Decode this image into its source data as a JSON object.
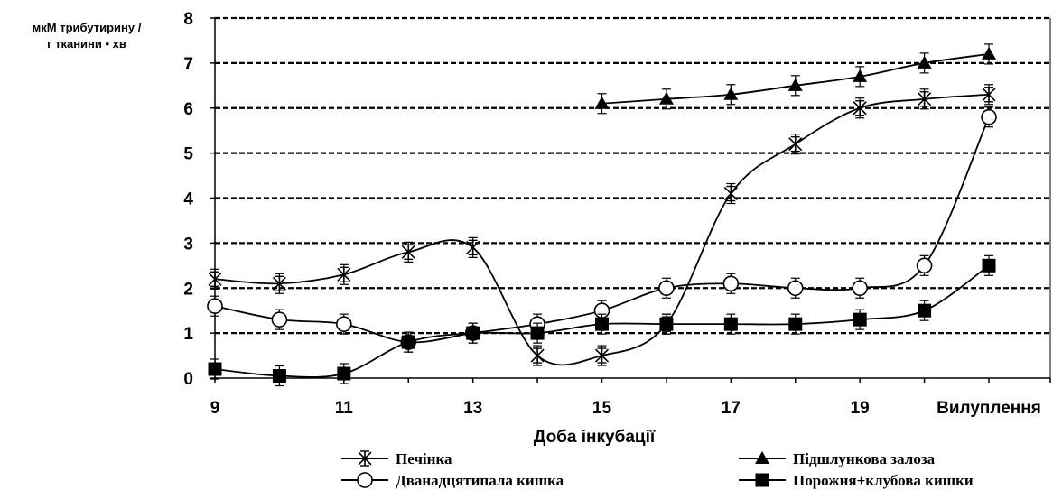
{
  "chart_data": {
    "type": "line",
    "ylabel_lines": [
      "мкМ трибутирину /",
      "г тканини • хв"
    ],
    "xlabel": "Доба інкубації",
    "ylim": [
      0,
      8
    ],
    "yticks": [
      0,
      1,
      2,
      3,
      4,
      5,
      6,
      7,
      8
    ],
    "grid": "horizontal dashed",
    "x_positions": [
      9,
      10,
      11,
      12,
      13,
      14,
      15,
      16,
      17,
      18,
      19,
      20,
      21
    ],
    "x_tick_labels": [
      {
        "x": 9,
        "label": "9"
      },
      {
        "x": 11,
        "label": "11"
      },
      {
        "x": 13,
        "label": "13"
      },
      {
        "x": 15,
        "label": "15"
      },
      {
        "x": 17,
        "label": "17"
      },
      {
        "x": 19,
        "label": "19"
      },
      {
        "x": 21,
        "label": "Вилуплення"
      }
    ],
    "legend_placement": "bottom",
    "series": [
      {
        "name": "Печінка",
        "marker": "star",
        "x": [
          9,
          10,
          11,
          12,
          13,
          14,
          15,
          16,
          17,
          18,
          19,
          20,
          21
        ],
        "y": [
          2.2,
          2.1,
          2.3,
          2.8,
          2.9,
          0.5,
          0.5,
          1.2,
          4.1,
          5.2,
          6.0,
          6.2,
          6.3
        ]
      },
      {
        "name": "Підшлункова залоза",
        "marker": "triangle",
        "x": [
          15,
          16,
          17,
          18,
          19,
          20,
          21
        ],
        "y": [
          6.1,
          6.2,
          6.3,
          6.5,
          6.7,
          7.0,
          7.2
        ]
      },
      {
        "name": "Дванадцятипала кишка",
        "marker": "circle",
        "x": [
          9,
          10,
          11,
          12,
          13,
          14,
          15,
          16,
          17,
          18,
          19,
          20,
          21
        ],
        "y": [
          1.6,
          1.3,
          1.2,
          0.8,
          1.0,
          1.2,
          1.5,
          2.0,
          2.1,
          2.0,
          2.0,
          2.5,
          5.8
        ]
      },
      {
        "name": "Порожня+клубова кишки",
        "marker": "square",
        "x": [
          9,
          10,
          11,
          12,
          13,
          14,
          15,
          16,
          17,
          18,
          19,
          20,
          21
        ],
        "y": [
          0.2,
          0.05,
          0.1,
          0.8,
          1.0,
          1.0,
          1.2,
          1.2,
          1.2,
          1.2,
          1.3,
          1.5,
          2.5
        ]
      }
    ]
  }
}
